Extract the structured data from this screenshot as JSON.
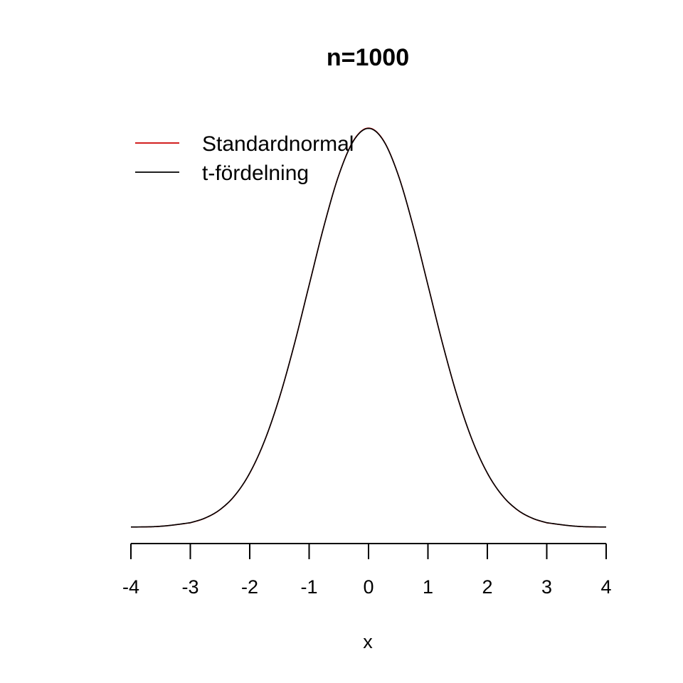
{
  "chart_data": {
    "type": "line",
    "title": "n=1000",
    "xlabel": "x",
    "ylabel": "",
    "xlim": [
      -4,
      4
    ],
    "ylim": [
      0,
      0.4
    ],
    "x_ticks": [
      -4,
      -3,
      -2,
      -1,
      0,
      1,
      2,
      3,
      4
    ],
    "x_tick_labels": [
      "-4",
      "-3",
      "-2",
      "-1",
      "0",
      "1",
      "2",
      "3",
      "4"
    ],
    "y_axis_shown": false,
    "grid": false,
    "legend_position": "top-left",
    "x": [
      -4,
      -3.5,
      -3,
      -2.75,
      -2.5,
      -2.25,
      -2,
      -1.75,
      -1.5,
      -1.25,
      -1,
      -0.75,
      -0.5,
      -0.25,
      0,
      0.25,
      0.5,
      0.75,
      1,
      1.25,
      1.5,
      1.75,
      2,
      2.25,
      2.5,
      2.75,
      3,
      3.5,
      4
    ],
    "series": [
      {
        "name": "Standardnormal",
        "color": "#cc0000",
        "values": [
          0.0001,
          0.0009,
          0.0044,
          0.0091,
          0.0175,
          0.0317,
          0.054,
          0.0863,
          0.1295,
          0.1826,
          0.242,
          0.3011,
          0.3521,
          0.3867,
          0.3989,
          0.3867,
          0.3521,
          0.3011,
          0.242,
          0.1826,
          0.1295,
          0.0863,
          0.054,
          0.0317,
          0.0175,
          0.0091,
          0.0044,
          0.0009,
          0.0001
        ]
      },
      {
        "name": "t-fördelning",
        "color": "#000000",
        "values": [
          0.0002,
          0.0009,
          0.0045,
          0.0092,
          0.0176,
          0.0318,
          0.0541,
          0.0864,
          0.1296,
          0.1826,
          0.2419,
          0.301,
          0.3519,
          0.3864,
          0.3986,
          0.3864,
          0.3519,
          0.301,
          0.2419,
          0.1826,
          0.1296,
          0.0864,
          0.0541,
          0.0318,
          0.0176,
          0.0092,
          0.0045,
          0.0009,
          0.0002
        ]
      }
    ]
  }
}
